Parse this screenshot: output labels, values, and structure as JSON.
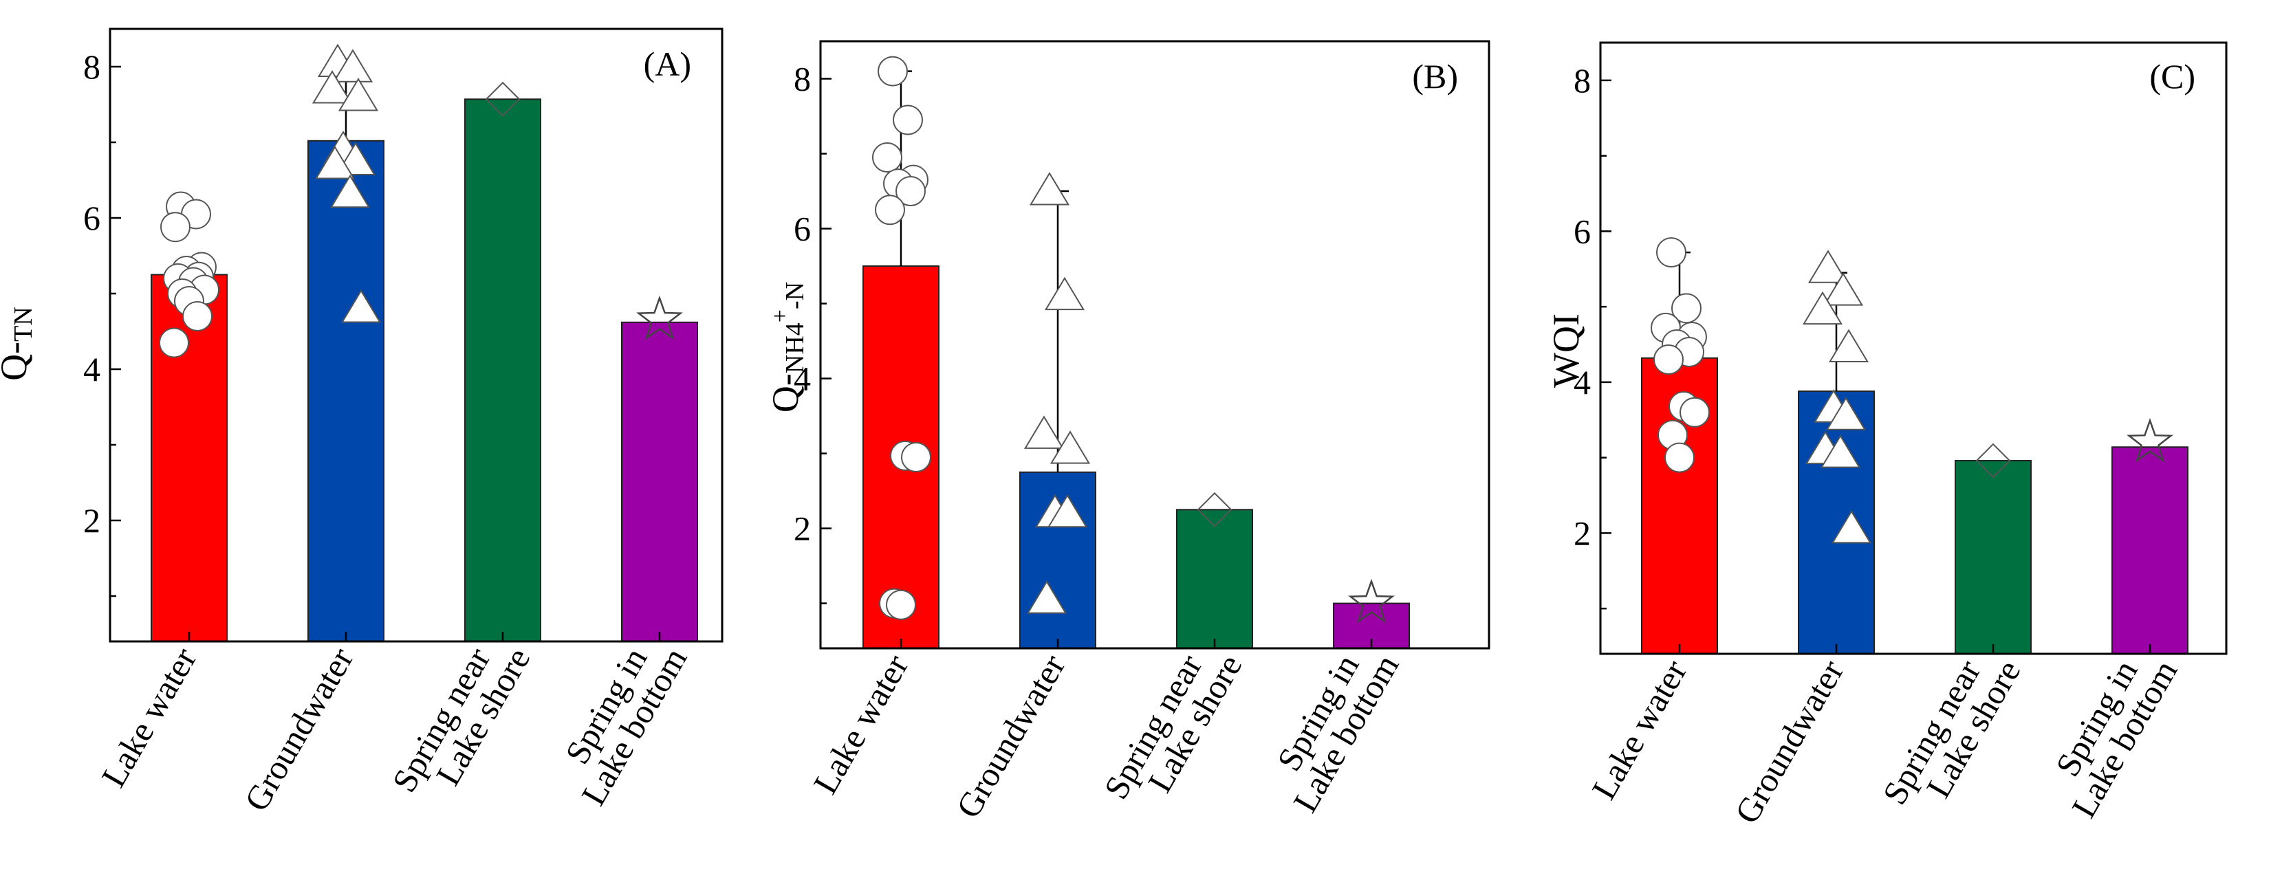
{
  "chart_data": [
    {
      "type": "bar",
      "panel_label": "(A)",
      "ylabel": "Q-TN",
      "ylabel_main": "Q-",
      "ylabel_sub": "TN",
      "ylabel_sup": "",
      "ylabel_tail": "",
      "categories": [
        "Lake water",
        "Groundwater",
        "Spring near Lake shore",
        "Spring in Lake bottom"
      ],
      "category_lines": [
        [
          "Lake water"
        ],
        [
          "Groundwater"
        ],
        [
          "Spring near",
          "Lake shore"
        ],
        [
          "Spring in",
          "Lake bottom"
        ]
      ],
      "values": [
        5.25,
        7.02,
        7.57,
        4.62
      ],
      "error_upper": [
        5.35,
        8.0,
        null,
        null
      ],
      "ylim": [
        0.4,
        8.5
      ],
      "yticks": [
        2,
        4,
        6,
        8
      ],
      "bar_colors": [
        "#ff0000",
        "#0047ab",
        "#007040",
        "#9a00a6"
      ],
      "marker_shapes": [
        "circle",
        "triangle",
        "diamond",
        "star"
      ],
      "points": [
        [
          6.15,
          6.05,
          5.88,
          5.35,
          5.3,
          5.22,
          5.2,
          5.15,
          5.05,
          5.0,
          4.9,
          4.7,
          4.35
        ],
        [
          8.05,
          7.98,
          7.7,
          7.6,
          6.9,
          6.75,
          6.7,
          6.32,
          4.8
        ],
        [
          7.57
        ],
        [
          4.65
        ]
      ]
    },
    {
      "type": "bar",
      "panel_label": "(B)",
      "ylabel": "Q-NH4+-N",
      "ylabel_main": "Q-",
      "ylabel_sub": "NH4",
      "ylabel_sup": "+",
      "ylabel_tail": "-N",
      "categories": [
        "Lake water",
        "Groundwater",
        "Spring near Lake shore",
        "Spring in Lake bottom"
      ],
      "category_lines": [
        [
          "Lake water"
        ],
        [
          "Groundwater"
        ],
        [
          "Spring near",
          "Lake shore"
        ],
        [
          "Spring in",
          "Lake bottom"
        ]
      ],
      "values": [
        5.5,
        2.75,
        2.25,
        1.0
      ],
      "error_upper": [
        8.1,
        6.5,
        null,
        null
      ],
      "ylim": [
        0.4,
        8.5
      ],
      "yticks": [
        2,
        4,
        6,
        8
      ],
      "bar_colors": [
        "#ff0000",
        "#0047ab",
        "#007040",
        "#9a00a6"
      ],
      "marker_shapes": [
        "circle",
        "triangle",
        "diamond",
        "star"
      ],
      "points": [
        [
          8.1,
          7.45,
          6.95,
          6.65,
          6.6,
          6.5,
          6.25,
          2.97,
          2.95,
          1.0,
          0.98
        ],
        [
          6.5,
          5.1,
          3.25,
          3.05,
          2.2,
          2.2,
          1.05
        ],
        [
          2.25
        ],
        [
          1.0
        ]
      ]
    },
    {
      "type": "bar",
      "panel_label": "(C)",
      "ylabel": "WQI",
      "ylabel_main": "WQI",
      "ylabel_sub": "",
      "ylabel_sup": "",
      "ylabel_tail": "",
      "categories": [
        "Lake water",
        "Groundwater",
        "Spring near Lake shore",
        "Spring in Lake bottom"
      ],
      "category_lines": [
        [
          "Lake water"
        ],
        [
          "Groundwater"
        ],
        [
          "Spring near",
          "Lake shore"
        ],
        [
          "Spring in",
          "Lake bottom"
        ]
      ],
      "values": [
        4.32,
        3.88,
        2.96,
        3.14
      ],
      "error_upper": [
        5.72,
        5.45,
        null,
        null
      ],
      "ylim": [
        0.4,
        8.5
      ],
      "yticks": [
        2,
        4,
        6,
        8
      ],
      "bar_colors": [
        "#ff0000",
        "#0047ab",
        "#007040",
        "#9a00a6"
      ],
      "marker_shapes": [
        "circle",
        "triangle",
        "diamond",
        "star"
      ],
      "points": [
        [
          5.72,
          4.98,
          4.72,
          4.6,
          4.5,
          4.4,
          4.3,
          3.68,
          3.6,
          3.3,
          3.0
        ],
        [
          5.5,
          5.2,
          4.95,
          4.45,
          3.65,
          3.55,
          3.1,
          3.05,
          2.05
        ],
        [
          2.96
        ],
        [
          3.2
        ]
      ]
    }
  ]
}
